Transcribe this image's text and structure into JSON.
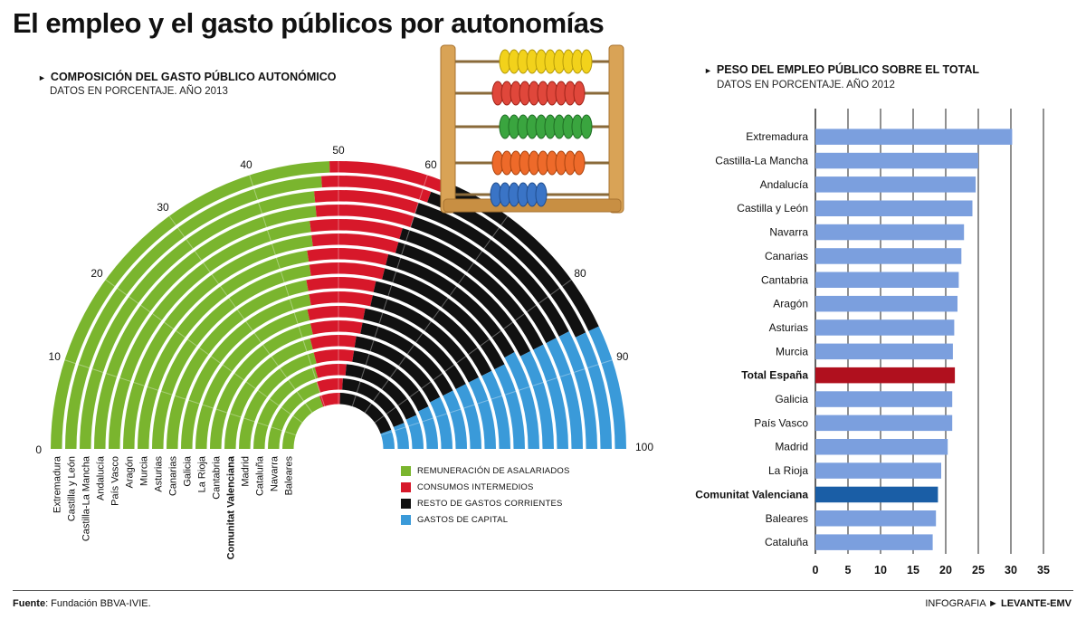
{
  "title": "El empleo y el gasto públicos por autonomías",
  "left": {
    "title": "COMPOSICIÓN DEL GASTO PÚBLICO AUTONÓMICO",
    "subtitle": "DATOS EN PORCENTAJE. AÑO 2013"
  },
  "right": {
    "title": "PESO DEL EMPLEO PÚBLICO SOBRE EL TOTAL",
    "subtitle": "DATOS EN PORCENTAJE. AÑO 2012"
  },
  "legend": [
    {
      "label": "REMUNERACIÓN DE ASALARIADOS",
      "color": "#7ab52e"
    },
    {
      "label": "CONSUMOS INTERMEDIOS",
      "color": "#d7182a"
    },
    {
      "label": "RESTO DE GASTOS CORRIENTES",
      "color": "#111111"
    },
    {
      "label": "GASTOS DE CAPITAL",
      "color": "#3a9ad9"
    }
  ],
  "arrow_glyph": "►",
  "icons": {
    "abacus": "abacus-illustration"
  },
  "footer": {
    "source_label": "Fuente",
    "source_text": ": Fundación BBVA-IVIE.",
    "credit_label": "INFOGRAFIA",
    "credit_arrow": "►",
    "credit_brand": "LEVANTE-EMV"
  },
  "chart_data": [
    {
      "type": "radial-stacked-bar",
      "title": "COMPOSICIÓN DEL GASTO PÚBLICO AUTONÓMICO",
      "subtitle": "DATOS EN PORCENTAJE. AÑO 2013",
      "scale_ticks": [
        0,
        10,
        20,
        30,
        40,
        50,
        60,
        70,
        80,
        90,
        100
      ],
      "scale_range": [
        0,
        100
      ],
      "categories": [
        "Extremadura",
        "Castilla y León",
        "Castilla-La Mancha",
        "Andalucía",
        "País Vasco",
        "Aragón",
        "Murcia",
        "Asturias",
        "Canarias",
        "Galicia",
        "La Rioja",
        "Cantabria",
        "Comunitat Valenciana",
        "Madrid",
        "Cataluña",
        "Navarra",
        "Baleares"
      ],
      "highlight": "Comunitat Valenciana",
      "series": [
        {
          "name": "REMUNERACIÓN DE ASALARIADOS",
          "color": "#7ab52e",
          "values": [
            49,
            48,
            47,
            47,
            46,
            46,
            45,
            45,
            44,
            44,
            43,
            43,
            42,
            42,
            41,
            40,
            39
          ]
        },
        {
          "name": "CONSUMOS INTERMEDIOS",
          "color": "#d7182a",
          "values": [
            13,
            13,
            13,
            13,
            13,
            13,
            13,
            13,
            13,
            13,
            13,
            13,
            13,
            13,
            12,
            12,
            12
          ]
        },
        {
          "name": "RESTO DE GASTOS CORRIENTES",
          "color": "#111111",
          "values": [
            24,
            25,
            25,
            25,
            26,
            26,
            26,
            27,
            28,
            28,
            29,
            29,
            30,
            31,
            34,
            36,
            38
          ]
        },
        {
          "name": "GASTOS DE CAPITAL",
          "color": "#3a9ad9",
          "values": [
            14,
            14,
            15,
            15,
            15,
            15,
            16,
            15,
            15,
            15,
            15,
            15,
            15,
            14,
            13,
            12,
            11
          ]
        }
      ]
    },
    {
      "type": "bar",
      "orientation": "horizontal",
      "title": "PESO DEL EMPLEO PÚBLICO SOBRE EL TOTAL",
      "subtitle": "DATOS EN PORCENTAJE. AÑO 2012",
      "categories": [
        "Extremadura",
        "Castilla-La Mancha",
        "Andalucía",
        "Castilla y León",
        "Navarra",
        "Canarias",
        "Cantabria",
        "Aragón",
        "Asturias",
        "Murcia",
        "Total España",
        "Galicia",
        "País Vasco",
        "Madrid",
        "La Rioja",
        "Comunitat Valenciana",
        "Baleares",
        "Cataluña"
      ],
      "values": [
        30.2,
        25.0,
        24.6,
        24.1,
        22.8,
        22.4,
        22.0,
        21.8,
        21.3,
        21.1,
        21.4,
        21.0,
        21.0,
        20.3,
        19.3,
        18.8,
        18.5,
        18.0
      ],
      "colors": {
        "default": "#7b9fde",
        "Total España": "#b0101e",
        "Comunitat Valenciana": "#1a5ea6"
      },
      "bold_categories": [
        "Total España",
        "Comunitat Valenciana"
      ],
      "xlim": [
        0,
        35
      ],
      "xticks": [
        0,
        5,
        10,
        15,
        20,
        25,
        30,
        35
      ],
      "grid": true
    }
  ]
}
